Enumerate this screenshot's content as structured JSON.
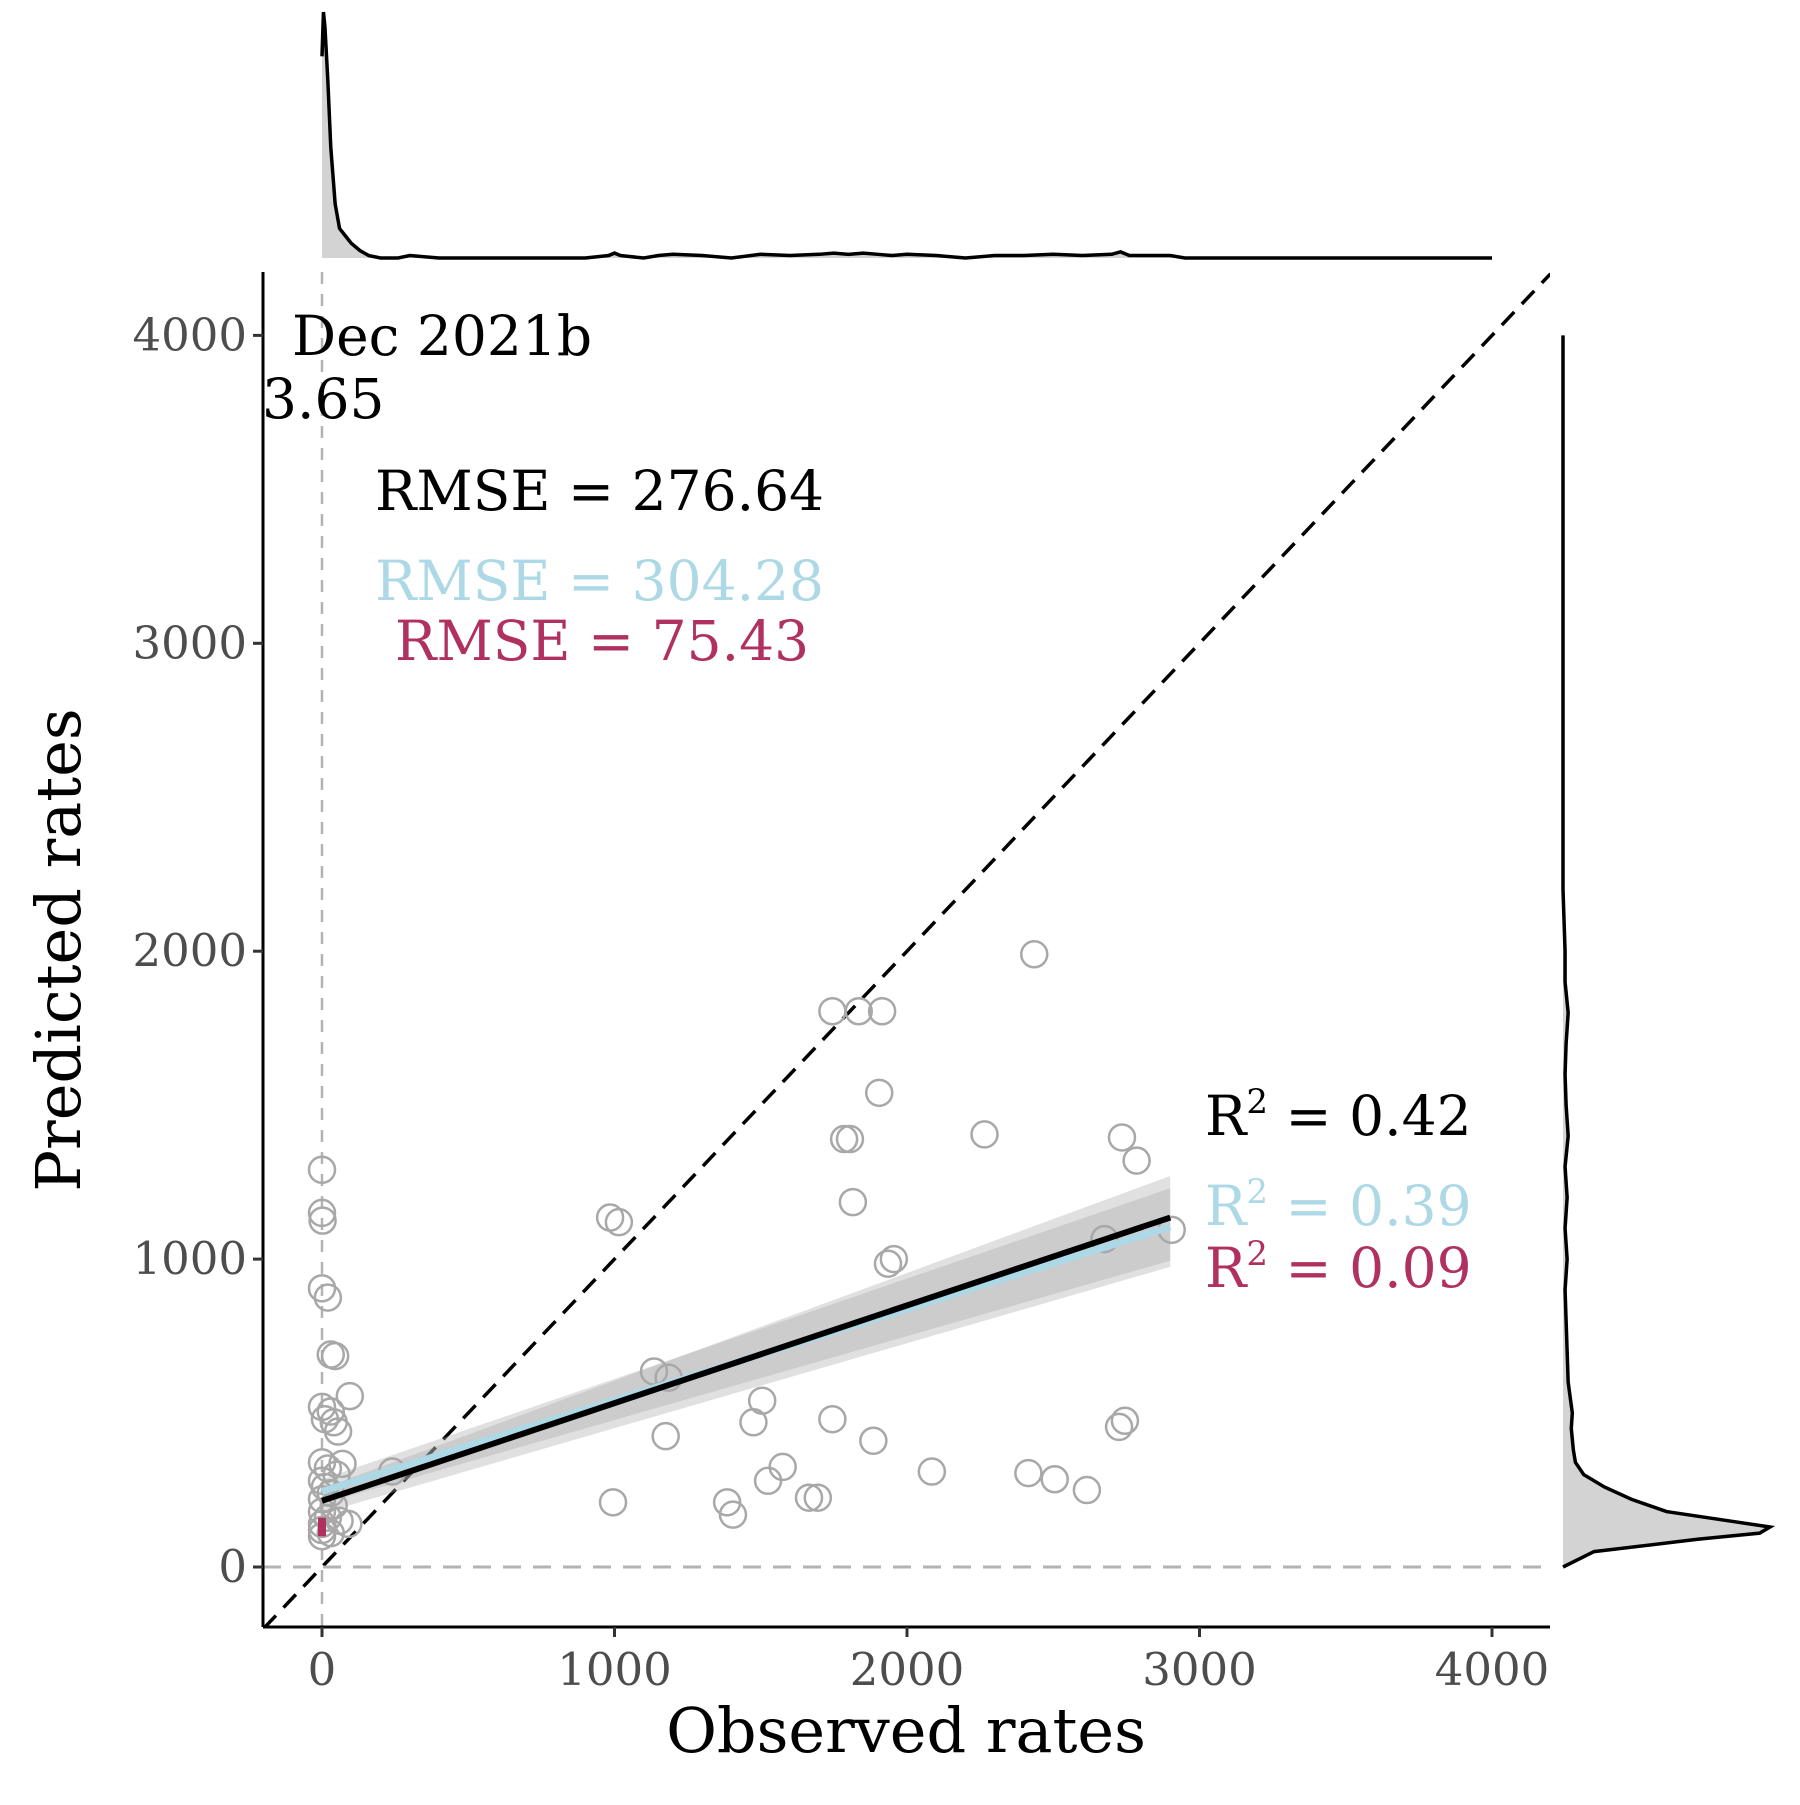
{
  "chart_data": {
    "type": "scatter",
    "xlabel": "Observed rates",
    "ylabel": "Predicted rates",
    "xlim": [
      -200,
      4200
    ],
    "ylim": [
      -200,
      4200
    ],
    "x_ticks": [
      "0",
      "1000",
      "2000",
      "3000",
      "4000"
    ],
    "y_ticks": [
      "0",
      "1000",
      "2000",
      "3000",
      "4000"
    ],
    "grid": false,
    "reference_lines": [
      {
        "kind": "identity",
        "style": "dashed",
        "color": "#000000"
      },
      {
        "kind": "vertical",
        "x": 0,
        "style": "dashed",
        "color": "#b3b3b3"
      },
      {
        "kind": "horizontal",
        "y": 0,
        "style": "dashed",
        "color": "#b3b3b3"
      }
    ],
    "annotations": [
      {
        "text": "Dec 2021b",
        "color": "#000000"
      },
      {
        "text": "3.65",
        "color": "#000000"
      },
      {
        "text": "RMSE = 276.64",
        "color": "#000000"
      },
      {
        "text": "RMSE = 304.28",
        "color": "#add8e6"
      },
      {
        "text": "RMSE = 75.43",
        "color": "#b03060"
      },
      {
        "text": "R",
        "sup": "2",
        "value": " = 0.42",
        "color": "#000000"
      },
      {
        "text": "R",
        "sup": "2",
        "value": " = 0.39",
        "color": "#add8e6"
      },
      {
        "text": "R",
        "sup": "2",
        "value": " = 0.09",
        "color": "#b03060"
      }
    ],
    "points": [
      {
        "x": 0,
        "y": 1290
      },
      {
        "x": 0,
        "y": 1150
      },
      {
        "x": 2,
        "y": 1125
      },
      {
        "x": 0,
        "y": 905
      },
      {
        "x": 20,
        "y": 875
      },
      {
        "x": 30,
        "y": 690
      },
      {
        "x": 45,
        "y": 685
      },
      {
        "x": 0,
        "y": 520
      },
      {
        "x": 30,
        "y": 505
      },
      {
        "x": 10,
        "y": 480
      },
      {
        "x": 40,
        "y": 470
      },
      {
        "x": 55,
        "y": 440
      },
      {
        "x": 95,
        "y": 555
      },
      {
        "x": 0,
        "y": 340
      },
      {
        "x": 20,
        "y": 320
      },
      {
        "x": 50,
        "y": 300
      },
      {
        "x": 70,
        "y": 335
      },
      {
        "x": 0,
        "y": 280
      },
      {
        "x": 10,
        "y": 260
      },
      {
        "x": 30,
        "y": 240
      },
      {
        "x": 0,
        "y": 220
      },
      {
        "x": 40,
        "y": 200
      },
      {
        "x": 0,
        "y": 180
      },
      {
        "x": 20,
        "y": 160
      },
      {
        "x": 0,
        "y": 140
      },
      {
        "x": 60,
        "y": 150
      },
      {
        "x": 90,
        "y": 140
      },
      {
        "x": 0,
        "y": 120
      },
      {
        "x": 30,
        "y": 110
      },
      {
        "x": 0,
        "y": 100
      },
      {
        "x": 240,
        "y": 310
      },
      {
        "x": 985,
        "y": 1135
      },
      {
        "x": 1015,
        "y": 1120
      },
      {
        "x": 1135,
        "y": 635
      },
      {
        "x": 1185,
        "y": 615
      },
      {
        "x": 1175,
        "y": 425
      },
      {
        "x": 995,
        "y": 210
      },
      {
        "x": 1385,
        "y": 210
      },
      {
        "x": 1405,
        "y": 170
      },
      {
        "x": 1475,
        "y": 470
      },
      {
        "x": 1505,
        "y": 540
      },
      {
        "x": 1525,
        "y": 280
      },
      {
        "x": 1575,
        "y": 325
      },
      {
        "x": 1665,
        "y": 225
      },
      {
        "x": 1695,
        "y": 225
      },
      {
        "x": 1745,
        "y": 480
      },
      {
        "x": 1745,
        "y": 1805
      },
      {
        "x": 1835,
        "y": 1805
      },
      {
        "x": 1915,
        "y": 1805
      },
      {
        "x": 1905,
        "y": 1540
      },
      {
        "x": 1785,
        "y": 1390
      },
      {
        "x": 1805,
        "y": 1390
      },
      {
        "x": 1815,
        "y": 1185
      },
      {
        "x": 1935,
        "y": 985
      },
      {
        "x": 1955,
        "y": 1000
      },
      {
        "x": 1885,
        "y": 410
      },
      {
        "x": 2085,
        "y": 310
      },
      {
        "x": 2265,
        "y": 1405
      },
      {
        "x": 2435,
        "y": 1990
      },
      {
        "x": 2415,
        "y": 305
      },
      {
        "x": 2505,
        "y": 285
      },
      {
        "x": 2615,
        "y": 250
      },
      {
        "x": 2675,
        "y": 1065
      },
      {
        "x": 2735,
        "y": 1395
      },
      {
        "x": 2785,
        "y": 1320
      },
      {
        "x": 2725,
        "y": 455
      },
      {
        "x": 2745,
        "y": 475
      },
      {
        "x": 2905,
        "y": 1095
      }
    ],
    "fits": [
      {
        "color": "#000000",
        "x": [
          0,
          2900
        ],
        "y": [
          215,
          1135
        ],
        "band_low": [
          175,
          975
        ],
        "band_high": [
          255,
          1270
        ]
      },
      {
        "color": "#add8e6",
        "x": [
          0,
          2900
        ],
        "y": [
          245,
          1105
        ],
        "band_low": [
          205,
          995
        ],
        "band_high": [
          285,
          1230
        ]
      },
      {
        "color": "#b03060",
        "x": [
          0,
          0
        ],
        "y": [
          100,
          160
        ],
        "band_low": [
          100,
          100
        ],
        "band_high": [
          160,
          160
        ]
      }
    ],
    "marginal_top": {
      "type": "density",
      "x": [
        0,
        5,
        10,
        20,
        30,
        45,
        60,
        80,
        100,
        130,
        160,
        200,
        260,
        300,
        400,
        500,
        700,
        900,
        980,
        1000,
        1020,
        1100,
        1150,
        1200,
        1300,
        1400,
        1500,
        1600,
        1700,
        1750,
        1800,
        1850,
        1900,
        1950,
        2000,
        2100,
        2200,
        2300,
        2400,
        2500,
        2600,
        2700,
        2730,
        2760,
        2800,
        2900,
        2950,
        3000,
        3500,
        4000
      ],
      "density": [
        0.82,
        1.0,
        0.94,
        0.72,
        0.45,
        0.22,
        0.12,
        0.09,
        0.06,
        0.03,
        0.01,
        0.0,
        0.0,
        0.01,
        0.0,
        0.0,
        0.0,
        0.0,
        0.01,
        0.02,
        0.01,
        0.0,
        0.01,
        0.015,
        0.01,
        0.0,
        0.015,
        0.01,
        0.015,
        0.02,
        0.015,
        0.02,
        0.015,
        0.01,
        0.015,
        0.01,
        0.0,
        0.01,
        0.01,
        0.015,
        0.01,
        0.015,
        0.025,
        0.01,
        0.01,
        0.01,
        0.0,
        0.0,
        0.0,
        0.0
      ]
    },
    "marginal_right": {
      "type": "density",
      "y": [
        0,
        50,
        90,
        110,
        130,
        150,
        180,
        220,
        260,
        300,
        340,
        380,
        450,
        500,
        600,
        700,
        800,
        900,
        1000,
        1100,
        1200,
        1300,
        1400,
        1500,
        1600,
        1700,
        1800,
        1900,
        2000,
        2100,
        2200,
        2500,
        3000,
        3500,
        4000
      ],
      "density": [
        0.0,
        0.15,
        0.65,
        0.95,
        1.0,
        0.8,
        0.5,
        0.33,
        0.2,
        0.1,
        0.06,
        0.05,
        0.04,
        0.045,
        0.025,
        0.02,
        0.015,
        0.01,
        0.02,
        0.01,
        0.02,
        0.01,
        0.025,
        0.015,
        0.01,
        0.015,
        0.025,
        0.01,
        0.01,
        0.005,
        0.0,
        0.0,
        0.0,
        0.0,
        0.0
      ]
    }
  }
}
